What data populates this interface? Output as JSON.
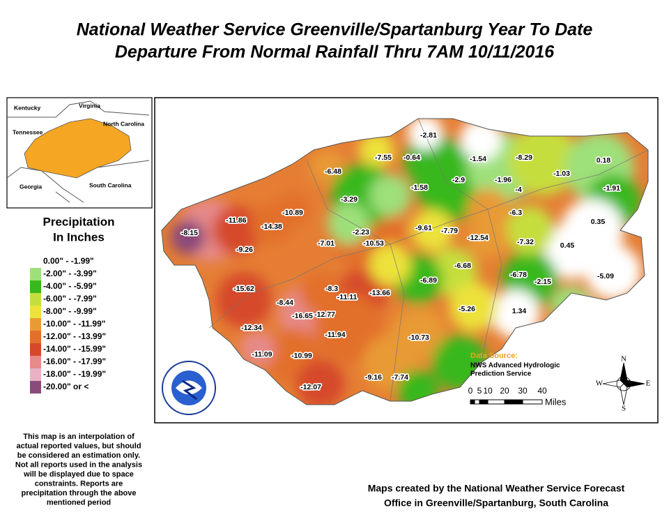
{
  "title": [
    "National Weather Service Greenville/Spartanburg Year To Date",
    "Departure From Normal Rainfall Thru 7AM 10/11/2016"
  ],
  "inset_labels": [
    "Kentucky",
    "Virginia",
    "Tennessee",
    "North Carolina",
    "Georgia",
    "South Carolina"
  ],
  "legend": {
    "title": [
      "Precipitation",
      "In Inches"
    ],
    "items": [
      {
        "label": "0.00\" - -1.99\"",
        "color": "#ffffff"
      },
      {
        "label": "-2.00\" - -3.99\"",
        "color": "#9ee07a"
      },
      {
        "label": "-4.00\" - -5.99\"",
        "color": "#38b81c"
      },
      {
        "label": "-6.00\" - -7.99\"",
        "color": "#c6de3c"
      },
      {
        "label": "-8.00\" - -9.99\"",
        "color": "#ece23a"
      },
      {
        "label": "-10.00\" - -11.99\"",
        "color": "#e89a34"
      },
      {
        "label": "-12.00\" - -13.99\"",
        "color": "#e2702c"
      },
      {
        "label": "-14.00\" - -15.99\"",
        "color": "#d6482a"
      },
      {
        "label": "-16.00\" - -17.99\"",
        "color": "#e68a8a"
      },
      {
        "label": "-18.00\" - -19.99\"",
        "color": "#e8b2c4"
      },
      {
        "label": "-20.00\" or <",
        "color": "#8a4a7a"
      }
    ]
  },
  "stations": [
    "-2.81",
    "-7.55",
    "-0.64",
    "-1.54",
    "-8.29",
    "-1.03",
    "0.18",
    "-6.48",
    "-1.58",
    "-2.9",
    "-1.96",
    "-4",
    "-1.91",
    "-3.29",
    "-6.3",
    "-11.86",
    "-10.89",
    "-14.38",
    "-8.15",
    "0.35",
    "-2.23",
    "-9.61",
    "-7.79",
    "-12.54",
    "-7.32",
    "0.45",
    "-7.01",
    "-10.53",
    "-9.26",
    "-6.68",
    "-6.78",
    "-2.15",
    "-5.09",
    "-6.89",
    "-15.62",
    "-8.3",
    "-11.11",
    "-13.66",
    "-8.44",
    "-16.65",
    "-12.77",
    "-5.26",
    "1.34",
    "-12.34",
    "-11.94",
    "-10.73",
    "-11.09",
    "-10.99",
    "-9.16",
    "-7.74",
    "-12.07"
  ],
  "data_source": {
    "heading": "Data Source:",
    "lines": [
      "NWS Advanced Hydrologic",
      "Prediction Service"
    ]
  },
  "scale": {
    "ticks": [
      "0",
      "5",
      "10",
      "20",
      "30",
      "40"
    ],
    "unit": "Miles"
  },
  "compass": [
    "N",
    "S",
    "E",
    "W"
  ],
  "note": [
    "This map is an interpolation of",
    "actual reported values, but should",
    "be considered an estimation only.",
    "Not all reports used in the analysis",
    "will be displayed due to space",
    "constraints. Reports are",
    "precipitation through the above",
    "mentioned period"
  ],
  "footer": [
    "Maps created by the National Weather Service Forecast",
    "Office in Greenville/Spartanburg, South Carolina"
  ]
}
